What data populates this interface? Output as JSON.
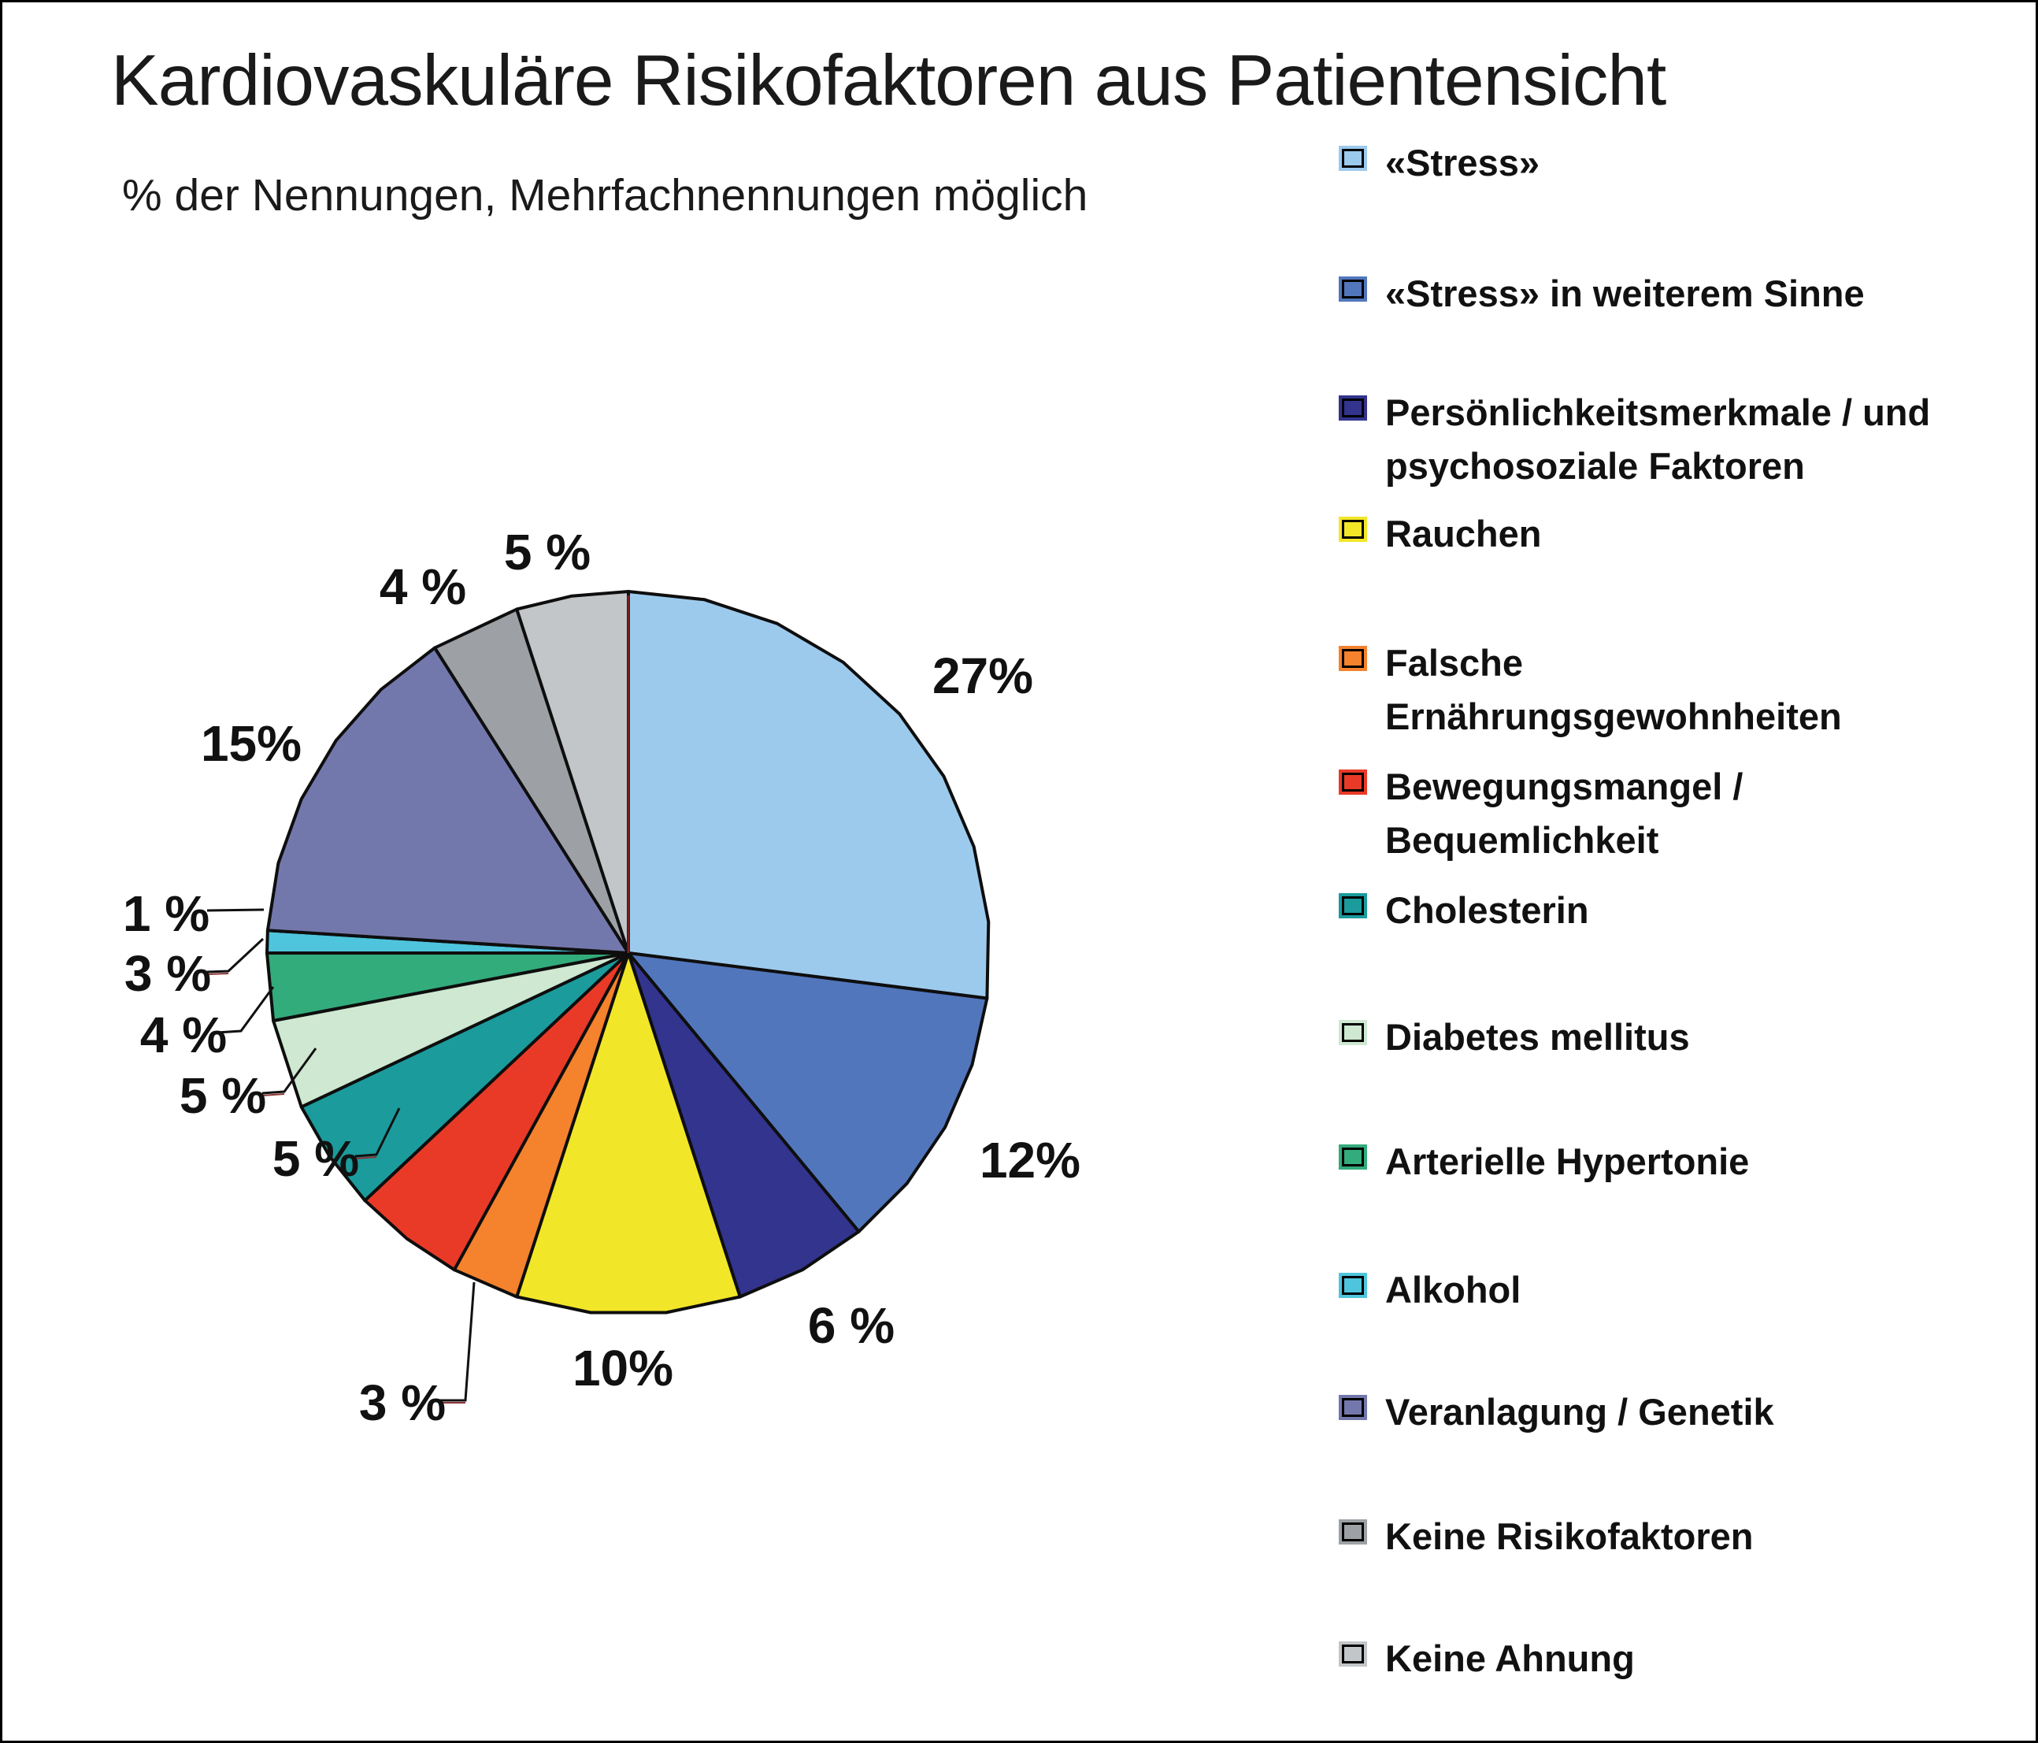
{
  "chart_data": {
    "type": "pie",
    "title": "Kardiovaskuläre Risikofaktoren aus Patientensicht",
    "subtitle": "% der Nennungen, Mehrfachnennungen möglich",
    "unit": "percent_of_mentions",
    "start_angle_deg": 0,
    "direction": "clockwise",
    "legend_position": "right",
    "outline_color": "#0e0e0e",
    "start_radius_color": "#7a211e",
    "leader_accent_color": "#8b3434",
    "slices": [
      {
        "label": "«Stress»",
        "value": 27,
        "display": "27%",
        "color": "#9CCAED",
        "legend_lines": [
          "«Stress»"
        ]
      },
      {
        "label": "«Stress» in weiterem Sinne",
        "value": 12,
        "display": "12%",
        "color": "#5276BC",
        "legend_lines": [
          "«Stress» in weiterem Sinne"
        ]
      },
      {
        "label": "Persönlichkeitsmerkmale / und psychosoziale Faktoren",
        "value": 6,
        "display": "6 %",
        "color": "#32348E",
        "legend_lines": [
          "Persönlichkeitsmerkmale / und",
          "psychosoziale Faktoren"
        ]
      },
      {
        "label": "Rauchen",
        "value": 10,
        "display": "10%",
        "color": "#F2E628",
        "legend_lines": [
          "Rauchen"
        ]
      },
      {
        "label": "Falsche Ernährungsgewohnheiten",
        "value": 3,
        "display": "3 %",
        "color": "#F5822D",
        "legend_lines": [
          "Falsche",
          "Ernährungsgewohnheiten"
        ]
      },
      {
        "label": "Bewegungsmangel / Bequemlichkeit",
        "value": 5,
        "display": "5 %",
        "color": "#E93A28",
        "legend_lines": [
          "Bewegungsmangel /",
          "Bequemlichkeit"
        ]
      },
      {
        "label": "Cholesterin",
        "value": 5,
        "display": "5 %",
        "color": "#1B9B9C",
        "legend_lines": [
          "Cholesterin"
        ]
      },
      {
        "label": "Diabetes mellitus",
        "value": 4,
        "display": "4 %",
        "color": "#CFE8D1",
        "legend_lines": [
          "Diabetes mellitus"
        ]
      },
      {
        "label": "Arterielle Hypertonie",
        "value": 3,
        "display": "3 %",
        "color": "#33AC7C",
        "legend_lines": [
          "Arterielle Hypertonie"
        ]
      },
      {
        "label": "Alkohol",
        "value": 1,
        "display": "1 %",
        "color": "#4EC5DC",
        "legend_lines": [
          "Alkohol"
        ]
      },
      {
        "label": "Veranlagung / Genetik",
        "value": 15,
        "display": "15%",
        "color": "#7378AC",
        "legend_lines": [
          "Veranlagung / Genetik"
        ]
      },
      {
        "label": "Keine Risikofaktoren",
        "value": 4,
        "display": "4 %",
        "color": "#9DA1A6",
        "legend_lines": [
          "Keine Risikofaktoren"
        ]
      },
      {
        "label": "Keine Ahnung",
        "value": 5,
        "display": "5 %",
        "color": "#C3C6C9",
        "legend_lines": [
          "Keine Ahnung"
        ]
      }
    ]
  }
}
